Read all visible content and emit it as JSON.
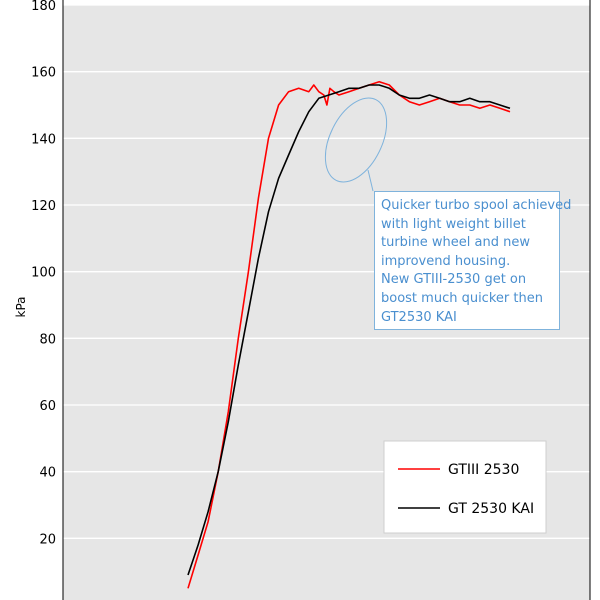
{
  "chart_data": {
    "type": "line",
    "ylabel": "kPa",
    "ylim": [
      0,
      180
    ],
    "yticks": [
      20,
      40,
      60,
      80,
      100,
      120,
      140,
      160,
      180
    ],
    "grid": true,
    "legend_position": "bottom-right",
    "series": [
      {
        "name": "GTIII 2530",
        "color": "#ff0000",
        "x": [
          0,
          10,
          20,
          30,
          40,
          50,
          60,
          70,
          80,
          90,
          100,
          110,
          120,
          125,
          130,
          135,
          138,
          141,
          145,
          150,
          160,
          170,
          180,
          190,
          200,
          210,
          220,
          230,
          240,
          250,
          260,
          270,
          280,
          290,
          300,
          310,
          320
        ],
        "values": [
          5,
          15,
          25,
          40,
          58,
          80,
          100,
          122,
          140,
          150,
          154,
          155,
          154,
          156,
          154,
          153,
          150,
          155,
          154,
          153,
          154,
          155,
          156,
          157,
          156,
          153,
          151,
          150,
          151,
          152,
          151,
          150,
          150,
          149,
          150,
          149,
          148
        ]
      },
      {
        "name": "GT 2530 KAI",
        "color": "#000000",
        "x": [
          0,
          10,
          20,
          30,
          40,
          50,
          60,
          70,
          80,
          90,
          100,
          110,
          120,
          130,
          140,
          150,
          160,
          170,
          180,
          190,
          200,
          210,
          220,
          230,
          240,
          250,
          260,
          270,
          280,
          290,
          300,
          310,
          320
        ],
        "values": [
          9,
          18,
          28,
          40,
          55,
          72,
          88,
          104,
          118,
          128,
          135,
          142,
          148,
          152,
          153,
          154,
          155,
          155,
          156,
          156,
          155,
          153,
          152,
          152,
          153,
          152,
          151,
          151,
          152,
          151,
          151,
          150,
          149
        ]
      }
    ],
    "annotation": {
      "lines": [
        "Quicker turbo spool achieved",
        "with light weight billet",
        "turbine wheel and new",
        "improvend housing.",
        "New GTIII-2530 get on",
        "boost much quicker then",
        "GT2530 KAI"
      ],
      "color": "#4a8fcf"
    }
  }
}
